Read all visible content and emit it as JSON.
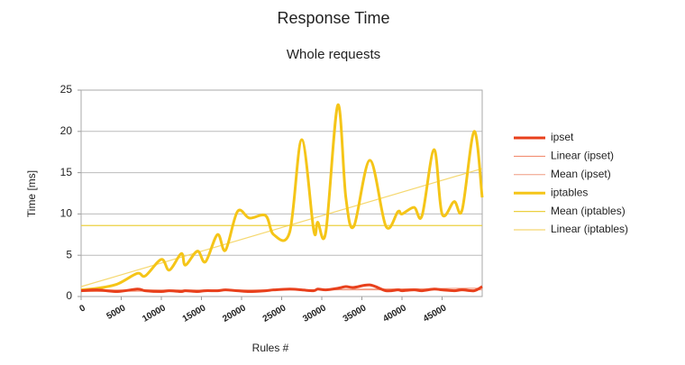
{
  "chart_data": {
    "type": "line",
    "title": "Response Time",
    "subtitle": "Whole requests",
    "x_label": "Rules #",
    "y_label": "Time [ms]",
    "xlim": [
      0,
      50000
    ],
    "ylim": [
      0,
      25
    ],
    "xticks": [
      0,
      5000,
      10000,
      15000,
      20000,
      25000,
      30000,
      35000,
      40000,
      45000
    ],
    "yticks": [
      0,
      5,
      10,
      15,
      20,
      25
    ],
    "grid": true,
    "legend": "right",
    "series": [
      {
        "name": "ipset",
        "color": "#e8401c",
        "width": 3,
        "smooth": true,
        "x": [
          0,
          2000,
          4500,
          7000,
          8000,
          10000,
          11000,
          12500,
          13000,
          14500,
          15500,
          17000,
          18000,
          19500,
          21000,
          23000,
          24000,
          26000,
          27500,
          29000,
          29500,
          30500,
          32000,
          33000,
          34000,
          36000,
          38000,
          39500,
          40000,
          41500,
          42500,
          44000,
          45000,
          46500,
          47500,
          49000,
          50000
        ],
        "values": [
          0.7,
          0.8,
          0.6,
          0.9,
          0.7,
          0.6,
          0.7,
          0.6,
          0.7,
          0.6,
          0.7,
          0.7,
          0.8,
          0.7,
          0.6,
          0.7,
          0.8,
          0.9,
          0.8,
          0.7,
          0.9,
          0.8,
          1.0,
          1.2,
          1.1,
          1.4,
          0.7,
          0.8,
          0.7,
          0.8,
          0.7,
          0.9,
          0.8,
          0.7,
          0.8,
          0.7,
          1.2
        ]
      },
      {
        "name": "Linear (ipset)",
        "color": "#f08060",
        "width": 1,
        "x": [
          0,
          50000
        ],
        "values": [
          0.6,
          1.0
        ]
      },
      {
        "name": "Mean (ipset)",
        "color": "#f09a80",
        "width": 1,
        "x": [
          0,
          50000
        ],
        "values": [
          0.8,
          0.8
        ]
      },
      {
        "name": "iptables",
        "color": "#f5c518",
        "width": 3,
        "smooth": true,
        "x": [
          0,
          2000,
          4500,
          7000,
          8000,
          10000,
          11000,
          12500,
          13000,
          14500,
          15500,
          17000,
          18000,
          19500,
          21000,
          23000,
          24000,
          26000,
          27500,
          29000,
          29500,
          30500,
          32000,
          33000,
          34000,
          36000,
          38000,
          39500,
          40000,
          41500,
          42500,
          44000,
          45000,
          46500,
          47500,
          49000,
          50000
        ],
        "values": [
          0.8,
          1.0,
          1.5,
          2.8,
          2.5,
          4.5,
          3.2,
          5.2,
          3.8,
          5.5,
          4.2,
          7.5,
          5.6,
          10.3,
          9.5,
          9.8,
          7.5,
          7.8,
          19,
          8,
          9,
          7.8,
          23.2,
          12,
          8.5,
          16.5,
          8.5,
          10.3,
          10,
          10.8,
          9.8,
          17.8,
          10,
          11.5,
          10.5,
          20,
          12
        ]
      },
      {
        "name": "Mean (iptables)",
        "color": "#ecd040",
        "width": 1.2,
        "x": [
          0,
          50000
        ],
        "values": [
          8.6,
          8.6
        ]
      },
      {
        "name": "Linear (iptables)",
        "color": "#f5d870",
        "width": 1.2,
        "x": [
          0,
          50000
        ],
        "values": [
          1.2,
          15.5
        ]
      }
    ]
  }
}
